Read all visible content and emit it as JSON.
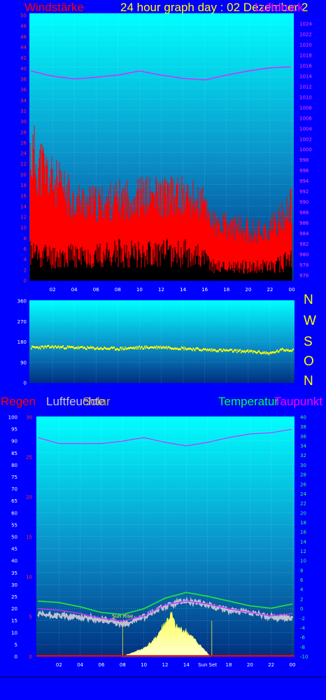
{
  "header": {
    "wind_label": "Windstärke",
    "title": "24 hour graph day : 02 Dezember 2",
    "pressure_label": "Luftdruck"
  },
  "bottom_labels": {
    "rain": "Regen",
    "humidity": "Luftfeuchte",
    "solar": "Solar",
    "temperature": "Temperatur",
    "dewpoint": "Taupunkt"
  },
  "compass": [
    "N",
    "W",
    "S",
    "O",
    "N"
  ],
  "colors": {
    "background": "#0000ff",
    "wind_gust": "#ff0000",
    "wind_avg": "#000000",
    "pressure": "#cc33ff",
    "direction": "#ffff00",
    "temperature": "#22dd44",
    "dewpoint": "#cc33ff",
    "humidity": "#c0c0d0",
    "solar": "#ffff88",
    "rain": "#ff0000"
  },
  "chart_data": [
    {
      "type": "line",
      "name": "wind-pressure",
      "x_ticks": [
        "02",
        "04",
        "06",
        "08",
        "10",
        "12",
        "14",
        "16",
        "18",
        "20",
        "22",
        "00"
      ],
      "ylim": [
        0,
        50
      ],
      "y_ticks": [
        0,
        2,
        4,
        6,
        8,
        10,
        12,
        14,
        16,
        18,
        20,
        22,
        24,
        26,
        28,
        30,
        32,
        34,
        36,
        38,
        40,
        42,
        44,
        46,
        48,
        50
      ],
      "y2lim": [
        975,
        1026
      ],
      "y2_ticks": [
        976,
        978,
        980,
        982,
        984,
        986,
        988,
        990,
        992,
        994,
        996,
        998,
        1000,
        1002,
        1004,
        1006,
        1008,
        1010,
        1012,
        1014,
        1016,
        1018,
        1020,
        1022,
        1024
      ],
      "hours": [
        0,
        2,
        4,
        6,
        8,
        10,
        12,
        14,
        15,
        16,
        17,
        18,
        20,
        22,
        24
      ],
      "gust_max": [
        31,
        24,
        19,
        18,
        19,
        20,
        20,
        20,
        19,
        18,
        13,
        13,
        12,
        12,
        18
      ],
      "gust_min": [
        5,
        5,
        5,
        5,
        5,
        5,
        5,
        5,
        5,
        5,
        3,
        3,
        3,
        3,
        4
      ],
      "avg_max": [
        8,
        7,
        7,
        7,
        8,
        8,
        8,
        8,
        8,
        6,
        4,
        4,
        4,
        4,
        6
      ],
      "pressure_hours": [
        0,
        2,
        4,
        6,
        8,
        10,
        12,
        14,
        16,
        18,
        20,
        22,
        24
      ],
      "pressure": [
        1015.0,
        1014.0,
        1013.5,
        1013.8,
        1014.2,
        1015.0,
        1014.2,
        1013.6,
        1013.3,
        1014.2,
        1015.0,
        1015.6,
        1015.8
      ]
    },
    {
      "type": "scatter",
      "name": "wind-direction",
      "ylim": [
        0,
        360
      ],
      "y_ticks": [
        0,
        90,
        180,
        270,
        360
      ],
      "hours": [
        0,
        2,
        4,
        6,
        8,
        10,
        12,
        14,
        16,
        18,
        20,
        22,
        23,
        24
      ],
      "direction": [
        155,
        158,
        155,
        152,
        150,
        155,
        157,
        152,
        145,
        142,
        138,
        130,
        145,
        145
      ]
    },
    {
      "type": "line",
      "name": "temp-hum-rain",
      "x_ticks": [
        "02",
        "04",
        "06",
        "08",
        "10",
        "12",
        "14",
        "Sun Set",
        "18",
        "20",
        "22",
        "00"
      ],
      "humidity_lim": [
        0,
        100
      ],
      "humidity_ticks": [
        0,
        5,
        10,
        15,
        20,
        25,
        30,
        35,
        40,
        45,
        50,
        55,
        60,
        65,
        70,
        75,
        80,
        85,
        90,
        95,
        100
      ],
      "rain_lim": [
        0,
        30
      ],
      "rain_ticks": [
        0,
        5,
        10,
        15,
        20,
        25,
        30
      ],
      "temp_lim": [
        -10,
        40
      ],
      "temp_ticks": [
        -10,
        -8,
        -6,
        -4,
        -2,
        0,
        2,
        4,
        6,
        8,
        10,
        12,
        14,
        16,
        18,
        20,
        22,
        24,
        26,
        28,
        30,
        32,
        34,
        36,
        38,
        40
      ],
      "sunrise_label": "Sun Rise",
      "sunrise_hour": 8.0,
      "sunset_label": "Sun Set",
      "sunset_hour": 16.4,
      "hours": [
        0,
        2,
        4,
        6,
        8,
        10,
        12,
        14,
        16,
        18,
        20,
        22,
        24
      ],
      "temperature": [
        1.6,
        1.3,
        0.4,
        -0.8,
        -1.2,
        0.0,
        2.2,
        3.4,
        2.6,
        1.6,
        0.6,
        0.1,
        1.0
      ],
      "dewpoint": [
        0.0,
        -0.3,
        -1.0,
        -2.0,
        -2.6,
        -1.5,
        0.8,
        1.6,
        1.0,
        0.0,
        -0.8,
        -1.5,
        -1.0
      ],
      "humidity": [
        17.5,
        17.0,
        16.5,
        15.5,
        13.5,
        16.5,
        21.0,
        23.5,
        21.5,
        19.5,
        18.0,
        16.5,
        16.0
      ],
      "pressure_hours": [
        0,
        2,
        4,
        6,
        8,
        10,
        12,
        14,
        16,
        18,
        20,
        22,
        24
      ],
      "pressure_line": [
        91.5,
        89.0,
        89.0,
        89.0,
        90.0,
        91.5,
        89.5,
        88.0,
        89.5,
        91.5,
        93.0,
        93.5,
        95.0
      ],
      "solar_hours": [
        7.9,
        9,
        10,
        11,
        12,
        12.6,
        13,
        14,
        15,
        16.3
      ],
      "solar": [
        0,
        2,
        4,
        8,
        16,
        20,
        14,
        12,
        7,
        0
      ],
      "rain": [
        0,
        0,
        0,
        0,
        0,
        0,
        0,
        0,
        0,
        0,
        0,
        0,
        0
      ]
    }
  ]
}
